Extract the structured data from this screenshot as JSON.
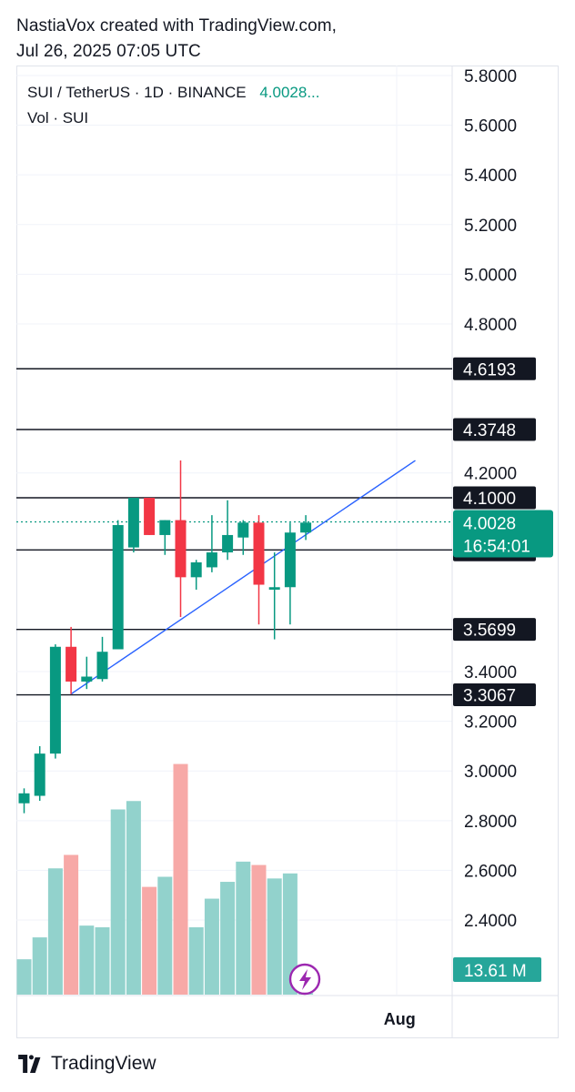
{
  "header": {
    "line1": "NastiaVox created with TradingView.com,",
    "line2": "Jul 26, 2025 07:05 UTC"
  },
  "legend": {
    "symbol": "SUI / TetherUS · 1D · BINANCE",
    "price": "4.0028...",
    "volume": "Vol · SUI"
  },
  "footer": {
    "brand": "TradingView",
    "logo_icon": "tradingview-logo-icon"
  },
  "colors": {
    "up": "#26a69a",
    "up_body": "#089981",
    "down": "#f23645",
    "vol_up": "#92d2cc",
    "vol_down": "#f7a9a7",
    "level_line": "#131722",
    "trendline": "#2962ff",
    "last_price": "#089981"
  },
  "chart_data": {
    "type": "candlestick",
    "symbol": "SUI / TetherUS",
    "interval": "1D",
    "exchange": "BINANCE",
    "y_axis": {
      "min": 2.2,
      "max": 5.8,
      "ticks": [
        "5.8000",
        "5.6000",
        "5.4000",
        "5.2000",
        "5.0000",
        "4.8000",
        "4.2000",
        "3.4000",
        "3.2000",
        "3.0000",
        "2.8000",
        "2.6000",
        "2.4000"
      ],
      "tick_values": [
        5.8,
        5.6,
        5.4,
        5.2,
        5.0,
        4.8,
        4.2,
        3.4,
        3.2,
        3.0,
        2.8,
        2.6,
        2.4
      ]
    },
    "x_axis": {
      "ticks": [
        {
          "label": "Aug",
          "index": 24
        }
      ]
    },
    "candles": [
      {
        "o": 2.87,
        "h": 2.93,
        "l": 2.83,
        "c": 2.91
      },
      {
        "o": 2.9,
        "h": 3.1,
        "l": 2.88,
        "c": 3.07
      },
      {
        "o": 3.07,
        "h": 3.51,
        "l": 3.05,
        "c": 3.5
      },
      {
        "o": 3.5,
        "h": 3.58,
        "l": 3.31,
        "c": 3.36
      },
      {
        "o": 3.36,
        "h": 3.46,
        "l": 3.33,
        "c": 3.38
      },
      {
        "o": 3.37,
        "h": 3.54,
        "l": 3.36,
        "c": 3.48
      },
      {
        "o": 3.49,
        "h": 4.01,
        "l": 3.49,
        "c": 3.99
      },
      {
        "o": 3.9,
        "h": 4.1,
        "l": 3.88,
        "c": 4.1
      },
      {
        "o": 4.1,
        "h": 4.1,
        "l": 3.95,
        "c": 3.95
      },
      {
        "o": 3.95,
        "h": 4.01,
        "l": 3.87,
        "c": 4.01
      },
      {
        "o": 4.01,
        "h": 4.25,
        "l": 3.62,
        "c": 3.78
      },
      {
        "o": 3.78,
        "h": 3.85,
        "l": 3.73,
        "c": 3.84
      },
      {
        "o": 3.82,
        "h": 4.03,
        "l": 3.8,
        "c": 3.88
      },
      {
        "o": 3.88,
        "h": 4.09,
        "l": 3.85,
        "c": 3.95
      },
      {
        "o": 3.94,
        "h": 4.01,
        "l": 3.87,
        "c": 4.0
      },
      {
        "o": 4.0,
        "h": 4.03,
        "l": 3.59,
        "c": 3.75
      },
      {
        "o": 3.73,
        "h": 3.88,
        "l": 3.53,
        "c": 3.74
      },
      {
        "o": 3.74,
        "h": 4.0,
        "l": 3.59,
        "c": 3.96
      },
      {
        "o": 3.96,
        "h": 4.03,
        "l": 3.93,
        "c": 4.0
      }
    ],
    "volume": {
      "last_label": "13.61 M",
      "bars": [
        {
          "v": 0.21,
          "dir": "up"
        },
        {
          "v": 0.34,
          "dir": "up"
        },
        {
          "v": 0.75,
          "dir": "up"
        },
        {
          "v": 0.83,
          "dir": "down"
        },
        {
          "v": 0.41,
          "dir": "up"
        },
        {
          "v": 0.4,
          "dir": "up"
        },
        {
          "v": 1.1,
          "dir": "up"
        },
        {
          "v": 1.15,
          "dir": "up"
        },
        {
          "v": 0.64,
          "dir": "down"
        },
        {
          "v": 0.7,
          "dir": "up"
        },
        {
          "v": 1.37,
          "dir": "down"
        },
        {
          "v": 0.4,
          "dir": "up"
        },
        {
          "v": 0.57,
          "dir": "up"
        },
        {
          "v": 0.67,
          "dir": "up"
        },
        {
          "v": 0.79,
          "dir": "up"
        },
        {
          "v": 0.77,
          "dir": "down"
        },
        {
          "v": 0.69,
          "dir": "up"
        },
        {
          "v": 0.72,
          "dir": "up"
        },
        {
          "v": 0.01,
          "dir": "up"
        }
      ]
    },
    "levels": [
      {
        "value": 4.6193,
        "label": "4.6193"
      },
      {
        "value": 4.3748,
        "label": "4.3748"
      },
      {
        "value": 4.1,
        "label": "4.1000"
      },
      {
        "value": 3.8902,
        "label": "3.8902"
      },
      {
        "value": 3.5699,
        "label": "3.5699"
      },
      {
        "value": 3.3067,
        "label": "3.3067"
      }
    ],
    "trendline": {
      "from": {
        "index": 3,
        "value": 3.31
      },
      "to": {
        "index": 25,
        "value": 4.25
      }
    },
    "last_price": {
      "value": 4.0028,
      "label": "4.0028",
      "countdown": "16:54:01"
    },
    "grid": true,
    "legend_position": "top-left"
  }
}
